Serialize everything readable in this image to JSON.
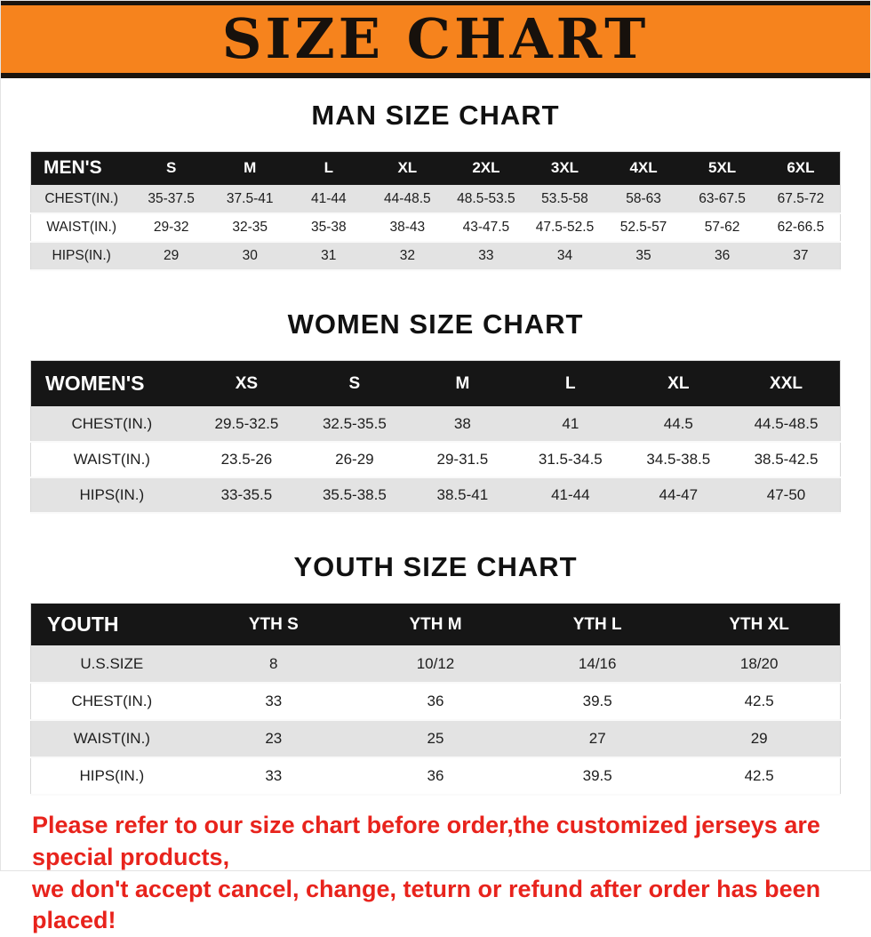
{
  "banner": {
    "title": "SIZE CHART",
    "background_color": "#f6831d",
    "border_color": "#1a140e"
  },
  "chart_data": [
    {
      "type": "table",
      "id": "men",
      "title": "MAN SIZE CHART",
      "columns": [
        "MEN'S",
        "S",
        "M",
        "L",
        "XL",
        "2XL",
        "3XL",
        "4XL",
        "5XL",
        "6XL"
      ],
      "rows": [
        [
          "CHEST(IN.)",
          "35-37.5",
          "37.5-41",
          "41-44",
          "44-48.5",
          "48.5-53.5",
          "53.5-58",
          "58-63",
          "63-67.5",
          "67.5-72"
        ],
        [
          "WAIST(IN.)",
          "29-32",
          "32-35",
          "35-38",
          "38-43",
          "43-47.5",
          "47.5-52.5",
          "52.5-57",
          "57-62",
          "62-66.5"
        ],
        [
          "HIPS(IN.)",
          "29",
          "30",
          "31",
          "32",
          "33",
          "34",
          "35",
          "36",
          "37"
        ]
      ]
    },
    {
      "type": "table",
      "id": "women",
      "title": "WOMEN SIZE CHART",
      "columns": [
        "WOMEN'S",
        "XS",
        "S",
        "M",
        "L",
        "XL",
        "XXL"
      ],
      "rows": [
        [
          "CHEST(IN.)",
          "29.5-32.5",
          "32.5-35.5",
          "38",
          "41",
          "44.5",
          "44.5-48.5"
        ],
        [
          "WAIST(IN.)",
          "23.5-26",
          "26-29",
          "29-31.5",
          "31.5-34.5",
          "34.5-38.5",
          "38.5-42.5"
        ],
        [
          "HIPS(IN.)",
          "33-35.5",
          "35.5-38.5",
          "38.5-41",
          "41-44",
          "44-47",
          "47-50"
        ]
      ]
    },
    {
      "type": "table",
      "id": "youth",
      "title": "YOUTH SIZE CHART",
      "columns": [
        "YOUTH",
        "YTH S",
        "YTH M",
        "YTH L",
        "YTH XL"
      ],
      "rows": [
        [
          "U.S.SIZE",
          "8",
          "10/12",
          "14/16",
          "18/20"
        ],
        [
          "CHEST(IN.)",
          "33",
          "36",
          "39.5",
          "42.5"
        ],
        [
          "WAIST(IN.)",
          "23",
          "25",
          "27",
          "29"
        ],
        [
          "HIPS(IN.)",
          "33",
          "36",
          "39.5",
          "42.5"
        ]
      ]
    }
  ],
  "footer": {
    "line1": "Please refer to our size chart before order,the customized jerseys are special products,",
    "line2": "we don't accept cancel, change, teturn or refund after order has been placed!",
    "text_color": "#e8231c"
  }
}
